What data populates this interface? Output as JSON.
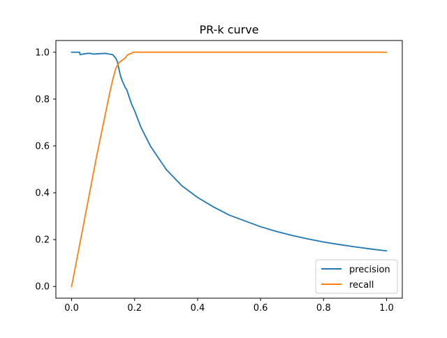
{
  "chart_data": {
    "type": "line",
    "title": "PR-k curve",
    "xlabel": "",
    "ylabel": "",
    "xlim": [
      -0.05,
      1.05
    ],
    "ylim": [
      -0.05,
      1.05
    ],
    "xticks": [
      {
        "value": 0.0,
        "label": "0.0"
      },
      {
        "value": 0.2,
        "label": "0.2"
      },
      {
        "value": 0.4,
        "label": "0.4"
      },
      {
        "value": 0.6,
        "label": "0.6"
      },
      {
        "value": 0.8,
        "label": "0.8"
      },
      {
        "value": 1.0,
        "label": "1.0"
      }
    ],
    "yticks": [
      {
        "value": 0.0,
        "label": "0.0"
      },
      {
        "value": 0.2,
        "label": "0.2"
      },
      {
        "value": 0.4,
        "label": "0.4"
      },
      {
        "value": 0.6,
        "label": "0.6"
      },
      {
        "value": 0.8,
        "label": "0.8"
      },
      {
        "value": 1.0,
        "label": "1.0"
      }
    ],
    "grid": false,
    "legend_position": "lower-right",
    "series": [
      {
        "name": "precision",
        "color": "#1f77b4",
        "x": [
          0.0,
          0.025,
          0.027,
          0.05,
          0.06,
          0.07,
          0.09,
          0.11,
          0.115,
          0.13,
          0.14,
          0.145,
          0.15,
          0.155,
          0.16,
          0.17,
          0.175,
          0.18,
          0.19,
          0.2,
          0.22,
          0.25,
          0.3,
          0.35,
          0.4,
          0.45,
          0.5,
          0.55,
          0.6,
          0.65,
          0.7,
          0.75,
          0.8,
          0.85,
          0.9,
          0.95,
          1.0
        ],
        "y": [
          1.0,
          1.0,
          0.99,
          0.995,
          0.995,
          0.992,
          0.994,
          0.995,
          0.993,
          0.99,
          0.975,
          0.96,
          0.93,
          0.9,
          0.88,
          0.85,
          0.84,
          0.82,
          0.78,
          0.75,
          0.68,
          0.6,
          0.5,
          0.43,
          0.38,
          0.34,
          0.305,
          0.28,
          0.255,
          0.235,
          0.218,
          0.203,
          0.19,
          0.179,
          0.169,
          0.16,
          0.152
        ]
      },
      {
        "name": "recall",
        "color": "#ff7f0e",
        "x": [
          0.0,
          0.02,
          0.04,
          0.06,
          0.08,
          0.1,
          0.12,
          0.13,
          0.14,
          0.15,
          0.16,
          0.17,
          0.175,
          0.18,
          0.185,
          0.19,
          0.195,
          0.2,
          0.25,
          0.3,
          0.4,
          0.5,
          0.6,
          0.7,
          0.8,
          0.9,
          1.0
        ],
        "y": [
          0.0,
          0.14,
          0.28,
          0.42,
          0.56,
          0.69,
          0.82,
          0.88,
          0.93,
          0.955,
          0.965,
          0.975,
          0.985,
          0.99,
          0.993,
          0.995,
          1.0,
          1.0,
          1.0,
          1.0,
          1.0,
          1.0,
          1.0,
          1.0,
          1.0,
          1.0,
          1.0
        ]
      }
    ]
  }
}
